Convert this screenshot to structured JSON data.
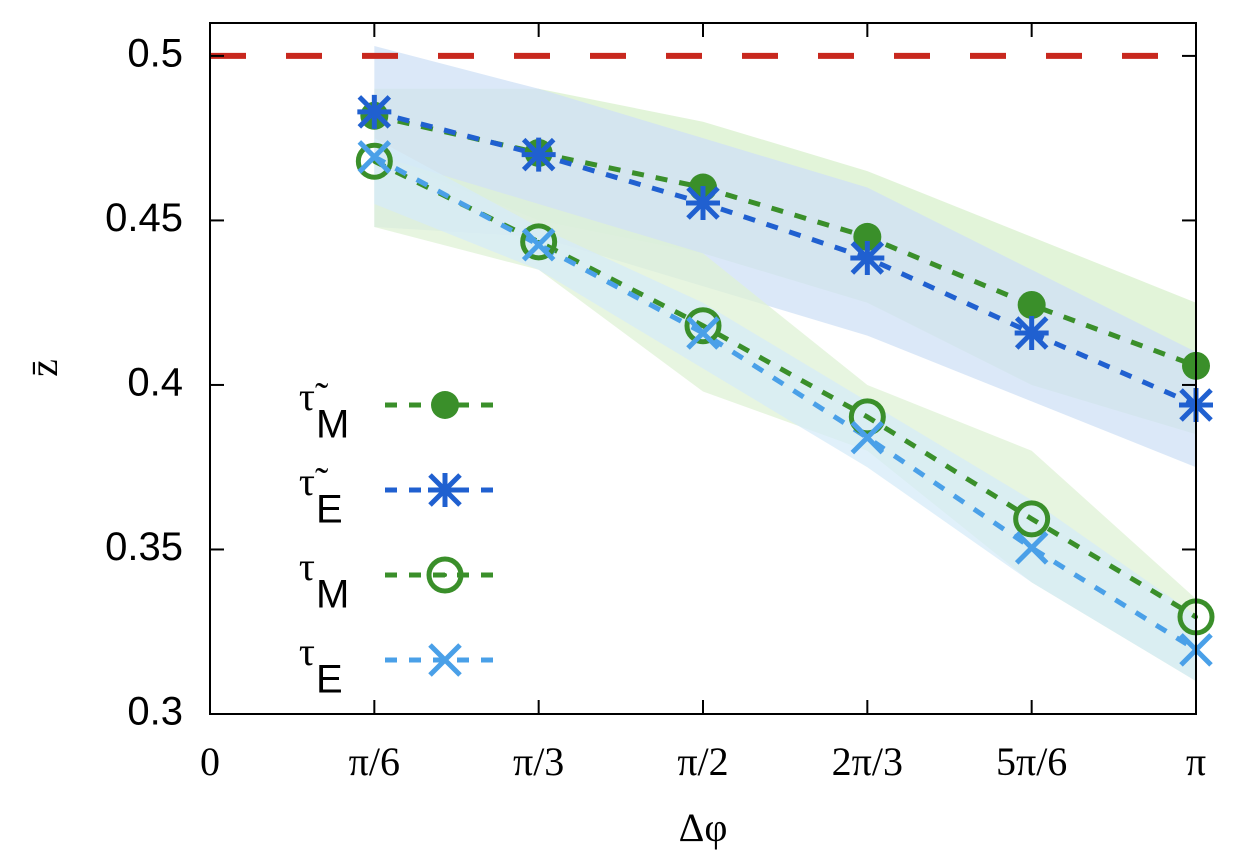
{
  "chart_data": {
    "type": "line",
    "x_label": "Δφ",
    "y_label": "z̄",
    "x": [
      0.5236,
      1.0472,
      1.5708,
      2.0944,
      2.618,
      3.1416
    ],
    "xlim": [
      0,
      3.1416
    ],
    "xticks": [
      0,
      {
        "value": 0.5236,
        "label": "π/6"
      },
      {
        "value": 1.0472,
        "label": "π/3"
      },
      {
        "value": 1.5708,
        "label": "π/2"
      },
      {
        "value": 2.0944,
        "label": "2π/3"
      },
      {
        "value": 2.618,
        "label": "5π/6"
      },
      {
        "value": 3.1416,
        "label": "π"
      }
    ],
    "ylim": [
      0.3,
      0.51
    ],
    "yticks": [
      0.3,
      0.35,
      0.4,
      0.45,
      0.5
    ],
    "reference_line": {
      "value": 0.5,
      "color": "#c8281e"
    },
    "legend": "center-left",
    "series": [
      {
        "name": "τ̃",
        "subscript": "M",
        "color": "#3a8f2a",
        "marker": "filled-circle",
        "band_color": "#d8f0cc",
        "values": [
          0.4818,
          0.4705,
          0.46,
          0.445,
          0.4243,
          0.4058
        ],
        "upper": [
          0.49,
          0.49,
          0.48,
          0.465,
          0.445,
          0.425
        ],
        "lower": [
          0.47,
          0.45,
          0.44,
          0.425,
          0.4,
          0.385
        ]
      },
      {
        "name": "τ̃",
        "subscript": "E",
        "color": "#2060d0",
        "marker": "asterisk",
        "band_color": "#cfe0f6",
        "values": [
          0.483,
          0.47,
          0.4553,
          0.4386,
          0.4158,
          0.3939
        ],
        "upper": [
          0.503,
          0.49,
          0.475,
          0.46,
          0.435,
          0.41
        ],
        "lower": [
          0.448,
          0.445,
          0.43,
          0.415,
          0.395,
          0.375
        ]
      },
      {
        "name": "τ",
        "subscript": "M",
        "color": "#3a8f2a",
        "marker": "open-circle",
        "band_color": "#dff2d6",
        "values": [
          0.468,
          0.4435,
          0.418,
          0.3903,
          0.3593,
          0.3295
        ],
        "upper": [
          0.47,
          0.455,
          0.44,
          0.4,
          0.38,
          0.335
        ],
        "lower": [
          0.448,
          0.435,
          0.398,
          0.38,
          0.34,
          0.31
        ]
      },
      {
        "name": "τ",
        "subscript": "E",
        "color": "#4aa0e8",
        "marker": "x",
        "band_color": "#d6ebf8",
        "values": [
          0.4693,
          0.4426,
          0.4158,
          0.384,
          0.3505,
          0.3195
        ],
        "upper": [
          0.475,
          0.448,
          0.425,
          0.395,
          0.365,
          0.33
        ],
        "lower": [
          0.455,
          0.435,
          0.405,
          0.375,
          0.34,
          0.31
        ]
      }
    ]
  }
}
